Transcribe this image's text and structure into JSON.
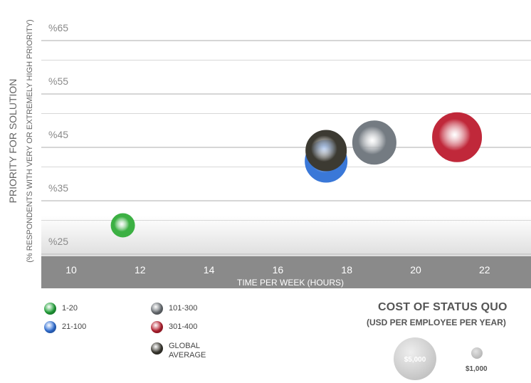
{
  "chart_data": {
    "type": "scatter",
    "title": "",
    "xlabel": "TIME PER WEEK (HOURS)",
    "ylabel": "PRIORITY FOR SOLUTION",
    "ylabel_sub": "(% RESPONDENTS WITH VERY OR EXTREMELY HIGH PRIORITY)",
    "xlim": [
      10,
      22
    ],
    "ylim": [
      25,
      65
    ],
    "x_ticks": [
      "10",
      "12",
      "14",
      "16",
      "18",
      "20",
      "22"
    ],
    "y_ticks": [
      "%25",
      "%35",
      "%45",
      "%55",
      "%65"
    ],
    "grid": true,
    "series": [
      {
        "name": "1-20",
        "x": 11.5,
        "y": 28,
        "color": "#3cb043"
      },
      {
        "name": "21-100",
        "x": 17.4,
        "y": 40,
        "color": "#3a78d8"
      },
      {
        "name": "101-300",
        "x": 18.8,
        "y": 43.5,
        "color": "#747b82"
      },
      {
        "name": "301-400",
        "x": 21.2,
        "y": 44.5,
        "color": "#c0283a"
      },
      {
        "name": "GLOBAL AVERAGE",
        "x": 17.4,
        "y": 42,
        "color": "#3c3a32"
      }
    ]
  },
  "legend": {
    "items": [
      {
        "label": "1-20",
        "color": "#22a33a"
      },
      {
        "label": "21-100",
        "color": "#2f6fd6"
      },
      {
        "label": "101-300",
        "color": "#6b7075"
      },
      {
        "label": "301-400",
        "color": "#b5202f"
      },
      {
        "label": "GLOBAL AVERAGE",
        "color": "#3a3830"
      }
    ]
  },
  "cost_legend": {
    "title": "COST OF STATUS QUO",
    "subtitle": "(USD PER EMPLOYEE PER YEAR)",
    "large_label": "$5,000",
    "small_label": "$1,000"
  }
}
